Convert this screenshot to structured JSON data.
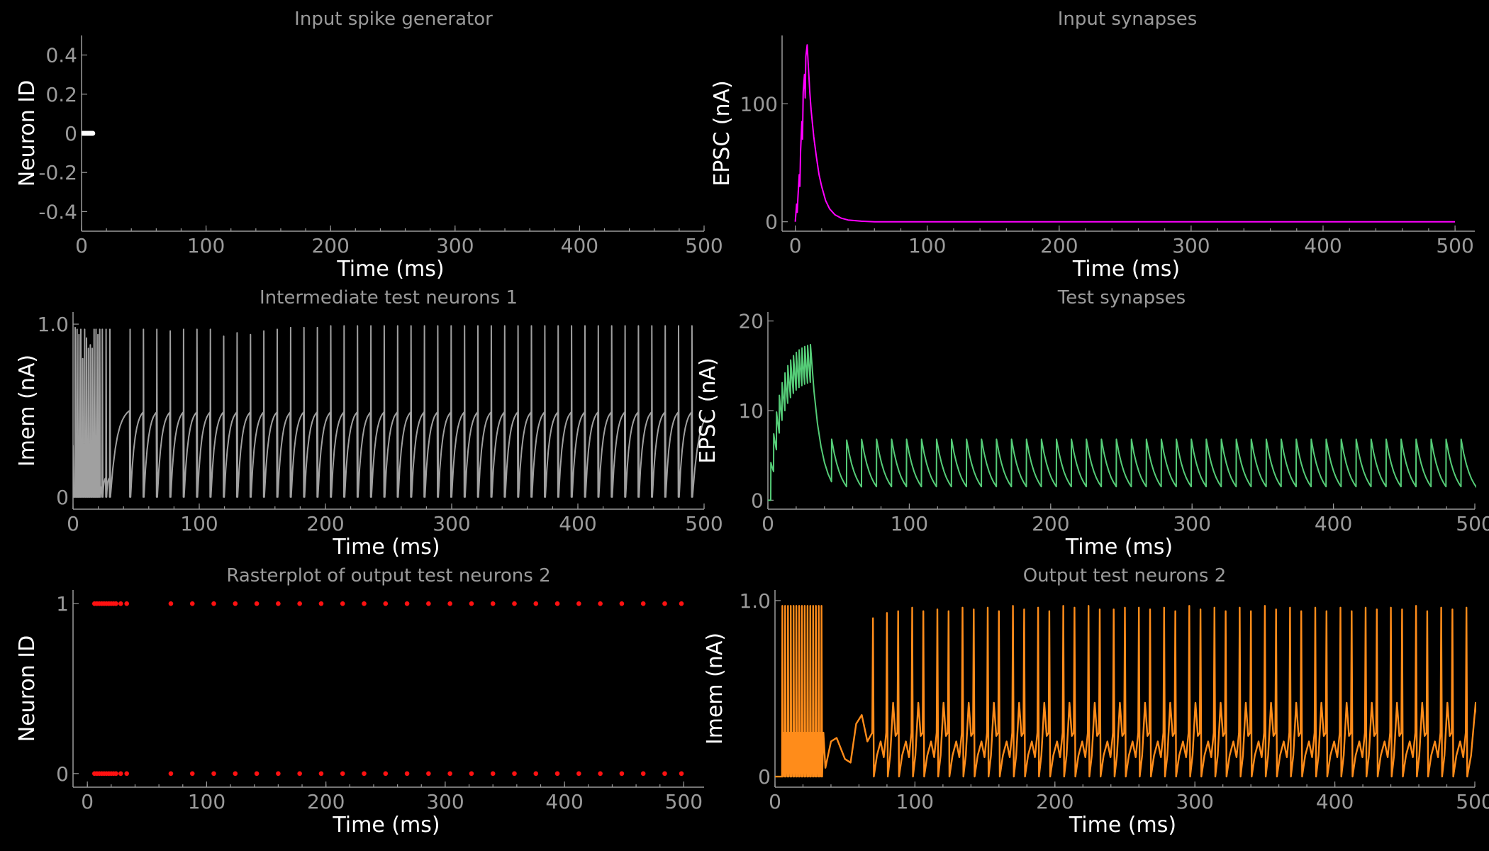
{
  "chart_data": [
    {
      "id": "input-spike-generator",
      "type": "scatter",
      "title": "Input spike generator",
      "xlabel": "Time (ms)",
      "ylabel": "Neuron ID",
      "xlim": [
        0,
        500
      ],
      "ylim": [
        -0.5,
        0.5
      ],
      "xticks": [
        0,
        100,
        200,
        300,
        400,
        500
      ],
      "yticks": [
        0.4,
        0.2,
        0,
        -0.2,
        -0.4
      ],
      "ytick_labels": [
        "0.4",
        "0.2",
        "0",
        "-0.2",
        "-0.4"
      ],
      "color": "#ffffff",
      "series": [
        {
          "points": [
            [
              1,
              0
            ],
            [
              2,
              0
            ],
            [
              3,
              0
            ],
            [
              4,
              0
            ],
            [
              5,
              0
            ],
            [
              6,
              0
            ],
            [
              7,
              0
            ],
            [
              8,
              0
            ],
            [
              9,
              0
            ]
          ]
        }
      ]
    },
    {
      "id": "input-synapses",
      "type": "line",
      "title": "Input synapses",
      "xlabel": "Time (ms)",
      "ylabel": "EPSC (nA)",
      "xlim": [
        -10,
        515
      ],
      "ylim": [
        -8,
        158
      ],
      "xticks": [
        0,
        100,
        200,
        300,
        400,
        500
      ],
      "yticks": [
        0,
        100
      ],
      "ytick_labels": [
        "0",
        "100"
      ],
      "color": "#ff00ff",
      "series": [
        {
          "x": [
            0,
            1,
            1.5,
            2,
            3,
            3.5,
            4,
            5,
            5.5,
            6,
            7,
            7.5,
            8,
            9,
            10,
            11,
            12,
            14,
            16,
            18,
            20,
            23,
            26,
            30,
            35,
            40,
            50,
            60,
            100,
            200,
            300,
            400,
            500
          ],
          "y": [
            0,
            15,
            8,
            20,
            40,
            30,
            60,
            85,
            70,
            110,
            125,
            105,
            140,
            150,
            130,
            110,
            95,
            72,
            55,
            40,
            30,
            18,
            11,
            6,
            3,
            1.5,
            0.5,
            0,
            0,
            0,
            0,
            0,
            0
          ]
        }
      ]
    },
    {
      "id": "intermediate-test-neurons-1",
      "type": "line",
      "title": "Intermediate test neurons 1",
      "xlabel": "Time (ms)",
      "ylabel": "Imem (nA)",
      "xlim": [
        0,
        500
      ],
      "ylim": [
        -0.07,
        1.07
      ],
      "xticks": [
        0,
        100,
        200,
        300,
        400,
        500
      ],
      "yticks": [
        0,
        1
      ],
      "ytick_labels": [
        "0",
        "1.0"
      ],
      "color": "#a0a0a0",
      "spike_times": [
        1.5,
        3,
        4.5,
        6,
        7.5,
        9,
        10.5,
        12,
        13.5,
        15,
        16.5,
        18,
        19.5,
        21,
        23,
        26,
        29,
        45,
        55.6,
        66.2,
        76.8,
        87.4,
        98,
        108.6,
        119.2,
        129.8,
        140.4,
        151,
        161.6,
        172.2,
        182.8,
        193.4,
        204,
        214.6,
        225.2,
        235.8,
        246.4,
        257,
        267.6,
        278.2,
        288.8,
        299.4,
        310,
        320.6,
        331.2,
        341.8,
        352.4,
        363,
        373.6,
        384.2,
        394.8,
        405.4,
        416,
        426.6,
        437.2,
        447.8,
        458.4,
        469,
        479.6,
        490.2
      ],
      "spike_peaks": [
        0.98,
        0.97,
        0.94,
        0.97,
        0.8,
        0.97,
        0.92,
        0.86,
        0.88,
        0.86,
        0.97,
        0.97,
        0.94,
        0.97,
        0.97,
        0.97,
        0.97,
        0.97,
        0.97,
        0.97,
        0.96,
        0.97,
        0.97,
        0.97,
        0.93,
        0.95,
        0.94,
        0.96,
        0.97,
        0.98,
        0.98,
        0.98,
        0.99,
        0.99,
        0.99,
        0.99,
        0.99,
        0.99,
        0.99,
        0.99,
        0.99,
        0.99,
        0.99,
        0.99,
        0.99,
        0.99,
        0.99,
        0.99,
        0.99,
        0.99,
        0.99,
        0.99,
        0.99,
        0.99,
        0.99,
        0.99,
        0.99,
        0.99,
        0.99,
        0.99
      ]
    },
    {
      "id": "test-synapses",
      "type": "line",
      "title": "Test synapses",
      "xlabel": "Time (ms)",
      "ylabel": "EPSC (nA)",
      "xlim": [
        0,
        500
      ],
      "ylim": [
        -1,
        21
      ],
      "xticks": [
        0,
        100,
        200,
        300,
        400,
        500
      ],
      "yticks": [
        0,
        10,
        20
      ],
      "ytick_labels": [
        "0",
        "10",
        "20"
      ],
      "color": "#55cc77",
      "spike_times": [
        2,
        4,
        6,
        8,
        10,
        12,
        14,
        16,
        18,
        20,
        22,
        24,
        26,
        28,
        30,
        45,
        55.6,
        66.2,
        76.8,
        87.4,
        98,
        108.6,
        119.2,
        129.8,
        140.4,
        151,
        161.6,
        172.2,
        182.8,
        193.4,
        204,
        214.6,
        225.2,
        235.8,
        246.4,
        257,
        267.6,
        278.2,
        288.8,
        299.4,
        310,
        320.6,
        331.2,
        341.8,
        352.4,
        363,
        373.6,
        384.2,
        394.8,
        405.4,
        416,
        426.6,
        437.2,
        447.8,
        458.4,
        469,
        479.6,
        490.2
      ]
    },
    {
      "id": "rasterplot-output-test-neurons-2",
      "type": "scatter",
      "title": "Rasterplot of output test neurons 2",
      "xlabel": "Time (ms)",
      "ylabel": "Neuron ID",
      "xlim": [
        -12,
        517
      ],
      "ylim": [
        -0.08,
        1.08
      ],
      "xticks": [
        0,
        100,
        200,
        300,
        400,
        500
      ],
      "yticks": [
        0,
        1
      ],
      "ytick_labels": [
        "0",
        "1"
      ],
      "color": "#ff1111",
      "spike_times": [
        6,
        8,
        10,
        12,
        14,
        16,
        18,
        20,
        22,
        24,
        28,
        33,
        70,
        88,
        106,
        124,
        142,
        160,
        178,
        196,
        214,
        232,
        250,
        268,
        286,
        304,
        322,
        340,
        358,
        376,
        394,
        412,
        430,
        448,
        466,
        484,
        498
      ],
      "neuron_ids": [
        0,
        1
      ]
    },
    {
      "id": "output-test-neurons-2",
      "type": "line",
      "title": "Output test neurons 2",
      "xlabel": "Time (ms)",
      "ylabel": "Imem (nA)",
      "xlim": [
        0,
        500
      ],
      "ylim": [
        -0.06,
        1.06
      ],
      "xticks": [
        0,
        100,
        200,
        300,
        400,
        500
      ],
      "yticks": [
        0,
        1
      ],
      "ytick_labels": [
        "0",
        "1.0"
      ],
      "color": "#ff8c1a",
      "burst_times": [
        5,
        7,
        9,
        11,
        13,
        15,
        17,
        19,
        21,
        23,
        25,
        27,
        29,
        31,
        33
      ],
      "spike_times": [
        70,
        80,
        88,
        98,
        106,
        116,
        124,
        134,
        142,
        152,
        160,
        170,
        178,
        188,
        196,
        206,
        214,
        224,
        232,
        242,
        250,
        260,
        268,
        278,
        286,
        296,
        304,
        314,
        322,
        332,
        340,
        350,
        358,
        368,
        376,
        386,
        394,
        404,
        412,
        422,
        430,
        440,
        448,
        458,
        466,
        476,
        484,
        494
      ],
      "spike_peaks": [
        0.9,
        0.93,
        0.94,
        0.96,
        0.94,
        0.95,
        0.94,
        0.96,
        0.95,
        0.96,
        0.94,
        0.97,
        0.95,
        0.96,
        0.94,
        0.97,
        0.96,
        0.97,
        0.95,
        0.95,
        0.96,
        0.96,
        0.95,
        0.96,
        0.94,
        0.97,
        0.95,
        0.96,
        0.94,
        0.96,
        0.94,
        0.97,
        0.95,
        0.96,
        0.94,
        0.96,
        0.94,
        0.96,
        0.94,
        0.96,
        0.95,
        0.96,
        0.95,
        0.97,
        0.94,
        0.96,
        0.95,
        0.96
      ]
    }
  ]
}
